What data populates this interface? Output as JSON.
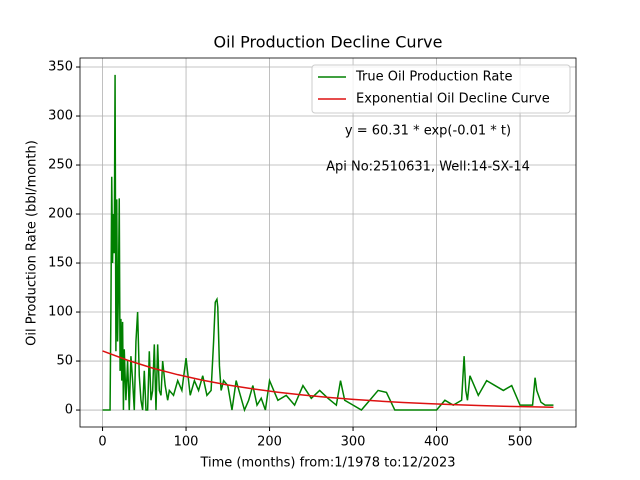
{
  "chart_data": {
    "type": "line",
    "title": "Oil Production Decline Curve",
    "xlabel": "Time (months) from:1/1978 to:12/2023",
    "ylabel": "Oil Production Rate (bbl/month)",
    "annotations": [
      "y = 60.31 * exp(-0.01 * t)",
      "Api No:2510631, Well:14-SX-14"
    ],
    "xlim": [
      -27,
      567
    ],
    "ylim": [
      -17.3,
      359.2
    ],
    "xticks": [
      0,
      100,
      200,
      300,
      400,
      500
    ],
    "yticks": [
      0,
      50,
      100,
      150,
      200,
      250,
      300,
      350
    ],
    "grid": true,
    "legend": "upper right",
    "series": [
      {
        "name": "True Oil Production Rate",
        "color": "#008000",
        "x": [
          0,
          3,
          6,
          9,
          10,
          11,
          12,
          13,
          14,
          15,
          16,
          17,
          18,
          19,
          20,
          21,
          22,
          23,
          24,
          25,
          26,
          28,
          30,
          32,
          34,
          36,
          38,
          40,
          42,
          44,
          46,
          48,
          50,
          52,
          54,
          56,
          58,
          60,
          62,
          64,
          66,
          68,
          70,
          72,
          75,
          78,
          80,
          85,
          90,
          95,
          100,
          105,
          110,
          115,
          120,
          125,
          130,
          133,
          135,
          137,
          138,
          140,
          142,
          145,
          150,
          155,
          160,
          165,
          170,
          175,
          180,
          185,
          190,
          195,
          200,
          210,
          220,
          230,
          240,
          250,
          260,
          270,
          280,
          285,
          290,
          300,
          310,
          320,
          330,
          340,
          350,
          360,
          380,
          400,
          410,
          420,
          430,
          433,
          435,
          437,
          440,
          450,
          460,
          470,
          480,
          490,
          500,
          510,
          515,
          518,
          520,
          525,
          530,
          540
        ],
        "values": [
          0,
          0,
          0,
          0,
          100,
          238,
          150,
          200,
          160,
          342,
          60,
          215,
          70,
          120,
          216,
          40,
          93,
          30,
          90,
          0,
          62,
          10,
          50,
          0,
          55,
          30,
          0,
          70,
          100,
          35,
          10,
          0,
          40,
          0,
          0,
          60,
          10,
          20,
          67,
          0,
          67,
          20,
          15,
          50,
          25,
          10,
          20,
          15,
          30,
          20,
          53,
          15,
          30,
          20,
          35,
          15,
          20,
          70,
          110,
          113,
          105,
          45,
          20,
          30,
          25,
          0,
          30,
          15,
          0,
          10,
          25,
          5,
          12,
          0,
          30,
          10,
          15,
          5,
          25,
          12,
          20,
          12,
          5,
          30,
          10,
          5,
          0,
          10,
          20,
          18,
          0,
          0,
          0,
          0,
          10,
          5,
          10,
          55,
          20,
          10,
          35,
          15,
          30,
          25,
          20,
          25,
          5,
          5,
          5,
          33,
          20,
          8,
          5,
          5
        ]
      },
      {
        "name": "Exponential Oil Decline Curve",
        "color": "#dd1111",
        "x": [
          0,
          30,
          60,
          90,
          120,
          150,
          180,
          210,
          240,
          270,
          300,
          330,
          360,
          390,
          420,
          450,
          480,
          510,
          540
        ],
        "values": [
          60.3,
          50.8,
          42.8,
          36.1,
          30.4,
          25.6,
          21.6,
          18.2,
          15.3,
          12.9,
          10.9,
          9.2,
          7.7,
          6.5,
          5.5,
          4.6,
          3.9,
          3.3,
          2.8
        ]
      }
    ]
  }
}
